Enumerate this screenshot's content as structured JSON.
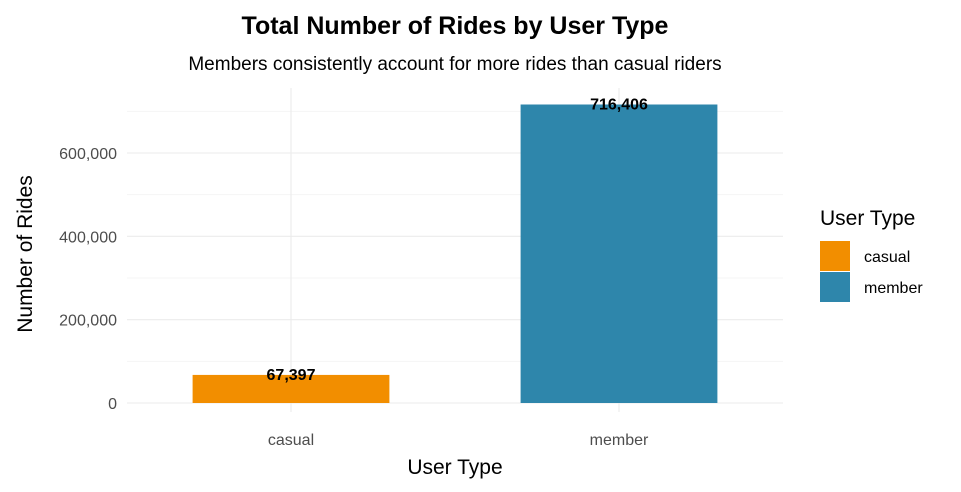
{
  "chart_data": {
    "type": "bar",
    "title": "Total Number of Rides by User Type",
    "subtitle": "Members consistently account for more rides than casual riders",
    "xlabel": "User Type",
    "ylabel": "Number of Rides",
    "categories": [
      "casual",
      "member"
    ],
    "values": [
      67397,
      716406
    ],
    "data_labels": [
      "67,397",
      "716,406"
    ],
    "colors": [
      "#F28E00",
      "#2E86AB"
    ],
    "ylim": [
      0,
      750000
    ],
    "y_ticks": [
      0,
      200000,
      400000,
      600000
    ],
    "y_tick_labels": [
      "0",
      "200,000",
      "400,000",
      "600,000"
    ],
    "grid": true,
    "legend": {
      "title": "User Type",
      "placement": "right",
      "entries": [
        "casual",
        "member"
      ]
    }
  }
}
